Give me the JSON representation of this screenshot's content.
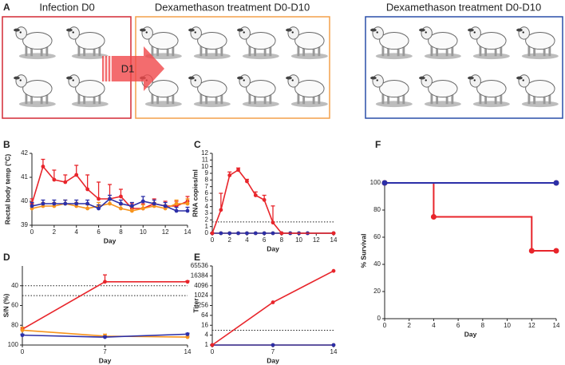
{
  "panel_a": {
    "label": "A",
    "groups": [
      {
        "title": "Infection D0"
      },
      {
        "title": "Dexamethason treatment D0-D10"
      },
      {
        "title": "Dexamethason treatment D0-D10"
      }
    ],
    "arrow_label": "D1"
  },
  "chart_data": [
    {
      "label": "B",
      "type": "line",
      "xlabel": "Day",
      "ylabel": "Rectal body temp (°C)",
      "xlim": [
        0,
        14
      ],
      "xticks": [
        0,
        2,
        4,
        6,
        8,
        10,
        12,
        14
      ],
      "ylim": [
        39,
        42
      ],
      "yticks": [
        39,
        40,
        41,
        42
      ],
      "series": [
        {
          "color": "#e8252b",
          "x": [
            0,
            1,
            2,
            3,
            4,
            5,
            6,
            7,
            8,
            9,
            10,
            11,
            12,
            13,
            14
          ],
          "values": [
            39.9,
            41.45,
            40.9,
            40.8,
            41.1,
            40.5,
            40.1,
            40.1,
            40.2,
            39.7,
            39.7,
            39.9,
            39.8,
            39.8,
            40.0
          ],
          "errors": [
            0.2,
            0.3,
            0.4,
            0.3,
            0.4,
            0.6,
            0.7,
            0.6,
            0.3,
            0.2,
            0.2,
            0.2,
            0.2,
            0.2,
            0.2
          ]
        },
        {
          "color": "#f7941d",
          "x": [
            0,
            1,
            2,
            3,
            4,
            5,
            6,
            7,
            8,
            9,
            10,
            11,
            12,
            13,
            14
          ],
          "values": [
            39.7,
            39.8,
            39.8,
            39.9,
            39.8,
            39.7,
            39.8,
            39.9,
            39.7,
            39.6,
            39.7,
            39.8,
            39.7,
            39.9,
            39.9
          ],
          "errors": [
            0.15,
            0.15,
            0.15,
            0.15,
            0.15,
            0.15,
            0.15,
            0.15,
            0.15,
            0.15,
            0.15,
            0.15,
            0.15,
            0.15,
            0.2
          ]
        },
        {
          "color": "#2c2fa8",
          "x": [
            0,
            1,
            2,
            3,
            4,
            5,
            6,
            7,
            8,
            9,
            10,
            11,
            12,
            13,
            14
          ],
          "values": [
            39.8,
            39.9,
            39.9,
            39.9,
            39.9,
            39.9,
            39.7,
            40.1,
            39.9,
            39.8,
            40.0,
            39.9,
            39.8,
            39.6,
            39.6
          ],
          "errors": [
            0.15,
            0.15,
            0.15,
            0.15,
            0.15,
            0.15,
            0.15,
            0.15,
            0.15,
            0.15,
            0.2,
            0.15,
            0.15,
            0.15,
            0.15
          ]
        }
      ]
    },
    {
      "label": "C",
      "type": "line",
      "xlabel": "Day",
      "ylabel": "RNA copies/ml",
      "xlim": [
        0,
        14
      ],
      "xticks": [
        0,
        2,
        4,
        6,
        8,
        10,
        12,
        14
      ],
      "ylim": [
        0,
        12
      ],
      "yticks": [
        0,
        1,
        2,
        3,
        4,
        5,
        6,
        7,
        8,
        9,
        10,
        11,
        12
      ],
      "hlines": [
        1.7
      ],
      "series": [
        {
          "color": "#f7941d",
          "x": [
            0,
            1,
            2,
            3,
            4,
            5,
            6,
            7,
            8,
            9,
            10,
            11,
            14
          ],
          "values": [
            0,
            0,
            0,
            0,
            0,
            0,
            0,
            0,
            0,
            0,
            0,
            0,
            0
          ]
        },
        {
          "color": "#2c2fa8",
          "x": [
            0,
            1,
            2,
            3,
            4,
            5,
            6,
            7,
            8,
            9,
            10,
            11,
            14
          ],
          "values": [
            0,
            0,
            0,
            0,
            0,
            0,
            0,
            0,
            0,
            0,
            0,
            0,
            0
          ]
        },
        {
          "color": "#e8252b",
          "x": [
            0,
            1,
            2,
            3,
            4,
            5,
            6,
            7,
            8,
            14
          ],
          "values": [
            0,
            3.5,
            8.7,
            9.5,
            7.8,
            5.7,
            5.0,
            1.6,
            0,
            0
          ],
          "errors": [
            0,
            2.5,
            0.5,
            0.3,
            0.3,
            0.5,
            0.7,
            2.5,
            0,
            0
          ]
        }
      ]
    },
    {
      "label": "D",
      "type": "line",
      "xlabel": "Day",
      "ylabel": "S/N (%)",
      "xlim": [
        0,
        14
      ],
      "xticks": [
        0,
        7,
        14
      ],
      "ylim": [
        100,
        20
      ],
      "yticks": [
        40,
        60,
        80,
        100
      ],
      "hlines": [
        40,
        50
      ],
      "series": [
        {
          "color": "#e8252b",
          "x": [
            0,
            7,
            14
          ],
          "values": [
            84,
            36,
            36
          ],
          "errors": [
            2,
            7,
            1
          ]
        },
        {
          "color": "#f7941d",
          "x": [
            0,
            7,
            14
          ],
          "values": [
            85,
            91,
            92
          ],
          "errors": [
            3,
            2,
            1
          ]
        },
        {
          "color": "#2c2fa8",
          "x": [
            0,
            7,
            14
          ],
          "values": [
            90,
            92,
            89
          ],
          "errors": [
            1,
            1,
            1
          ]
        }
      ]
    },
    {
      "label": "E",
      "type": "line",
      "xlabel": "Day",
      "ylabel": "Titer",
      "xlim": [
        0,
        14
      ],
      "xticks": [
        0,
        7,
        14
      ],
      "yscale": "log",
      "ylim": [
        1,
        65536
      ],
      "yticks": [
        1,
        4,
        16,
        64,
        256,
        1024,
        4096,
        16384,
        65536
      ],
      "hlines": [
        8
      ],
      "series": [
        {
          "color": "#f7941d",
          "x": [
            0,
            7,
            14
          ],
          "values": [
            1,
            1,
            1
          ]
        },
        {
          "color": "#2c2fa8",
          "x": [
            0,
            7,
            14
          ],
          "values": [
            1,
            1,
            1
          ]
        },
        {
          "color": "#e8252b",
          "x": [
            0,
            7,
            14
          ],
          "values": [
            1,
            400,
            32768
          ]
        }
      ]
    },
    {
      "label": "F",
      "type": "step",
      "xlabel": "Day",
      "ylabel": "% Survival",
      "xlim": [
        0,
        14
      ],
      "xticks": [
        0,
        2,
        4,
        6,
        8,
        10,
        12,
        14
      ],
      "ylim": [
        0,
        100
      ],
      "yticks": [
        0,
        20,
        40,
        60,
        80,
        100
      ],
      "series": [
        {
          "color": "#e8252b",
          "x": [
            0,
            4,
            12,
            14
          ],
          "values": [
            100,
            75,
            50,
            50
          ]
        },
        {
          "color": "#f7941d",
          "x": [
            0,
            14
          ],
          "values": [
            100,
            100
          ]
        },
        {
          "color": "#2c2fa8",
          "x": [
            0,
            14
          ],
          "values": [
            100,
            100
          ]
        }
      ]
    }
  ]
}
